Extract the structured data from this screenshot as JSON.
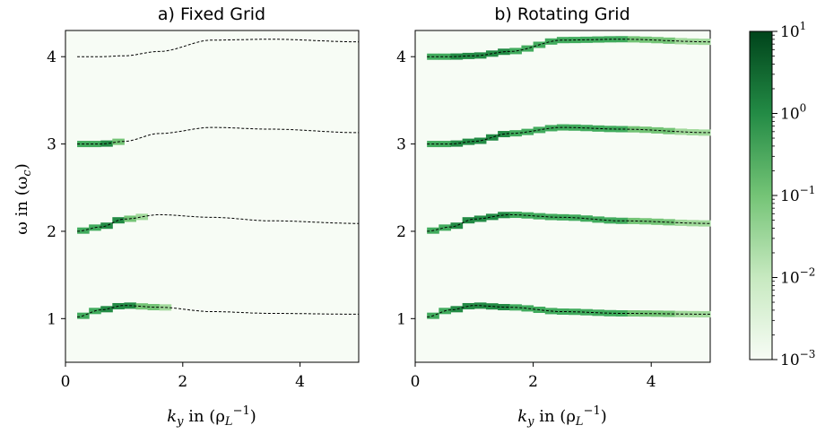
{
  "figure": {
    "ylabel": "ω in (ω",
    "ylabel_sub": "c",
    "ylabel_close": ")",
    "xlabel": "k",
    "xlabel_sub": "y",
    "xlabel_tail": " in (ρ",
    "xlabel_sub2": "L",
    "xlabel_sup": "−1",
    "xlabel_close": ")"
  },
  "chart_data": [
    {
      "type": "heatmap",
      "title": "a) Fixed Grid",
      "xlim": [
        0,
        5
      ],
      "ylim": [
        0.5,
        4.3
      ],
      "xticks": [
        "0",
        "2",
        "4"
      ],
      "yticks": [
        "1",
        "2",
        "3",
        "4"
      ],
      "background_color": "#f7fcf5",
      "dispersion_curves": [
        {
          "x": [
            0.2,
            0.6,
            1.0,
            1.6,
            2.5,
            3.5,
            5.0
          ],
          "y": [
            1.02,
            1.1,
            1.15,
            1.13,
            1.08,
            1.06,
            1.05
          ]
        },
        {
          "x": [
            0.2,
            0.6,
            1.0,
            1.6,
            2.5,
            3.5,
            5.0
          ],
          "y": [
            2.0,
            2.05,
            2.14,
            2.19,
            2.16,
            2.12,
            2.09
          ]
        },
        {
          "x": [
            0.2,
            0.6,
            1.0,
            1.6,
            2.5,
            3.5,
            5.0
          ],
          "y": [
            3.0,
            3.0,
            3.03,
            3.12,
            3.19,
            3.17,
            3.13
          ]
        },
        {
          "x": [
            0.2,
            0.6,
            1.0,
            1.6,
            2.5,
            3.5,
            5.0
          ],
          "y": [
            4.0,
            4.0,
            4.01,
            4.06,
            4.19,
            4.2,
            4.17
          ]
        }
      ],
      "intensity_extent": [
        1.7,
        1.3,
        1.0,
        0
      ]
    },
    {
      "type": "heatmap",
      "title": "b) Rotating Grid",
      "xlim": [
        0,
        5
      ],
      "ylim": [
        0.5,
        4.3
      ],
      "xticks": [
        "0",
        "2",
        "4"
      ],
      "yticks": [
        "1",
        "2",
        "3",
        "4"
      ],
      "background_color": "#f7fcf5",
      "dispersion_curves": [
        {
          "x": [
            0.2,
            0.6,
            1.0,
            1.6,
            2.5,
            3.5,
            5.0
          ],
          "y": [
            1.02,
            1.1,
            1.15,
            1.13,
            1.08,
            1.06,
            1.05
          ]
        },
        {
          "x": [
            0.2,
            0.6,
            1.0,
            1.6,
            2.5,
            3.5,
            5.0
          ],
          "y": [
            2.0,
            2.05,
            2.14,
            2.19,
            2.16,
            2.12,
            2.09
          ]
        },
        {
          "x": [
            0.2,
            0.6,
            1.0,
            1.6,
            2.5,
            3.5,
            5.0
          ],
          "y": [
            3.0,
            3.0,
            3.03,
            3.12,
            3.19,
            3.17,
            3.13
          ]
        },
        {
          "x": [
            0.2,
            0.6,
            1.0,
            1.6,
            2.5,
            3.5,
            5.0
          ],
          "y": [
            4.0,
            4.0,
            4.01,
            4.06,
            4.19,
            4.2,
            4.17
          ]
        }
      ],
      "intensity_extent": [
        5.0,
        5.0,
        5.0,
        5.0
      ]
    }
  ],
  "colorbar": {
    "scale": "log",
    "range": [
      0.001,
      10
    ],
    "ticks": [
      {
        "base": "10",
        "exp": "1",
        "value": 10
      },
      {
        "base": "10",
        "exp": "0",
        "value": 1
      },
      {
        "base": "10",
        "exp": "−1",
        "value": 0.1
      },
      {
        "base": "10",
        "exp": "−2",
        "value": 0.01
      },
      {
        "base": "10",
        "exp": "−3",
        "value": 0.001
      }
    ],
    "colors": [
      "#f7fcf5",
      "#c7e9c0",
      "#74c476",
      "#238b45",
      "#00441b"
    ]
  }
}
